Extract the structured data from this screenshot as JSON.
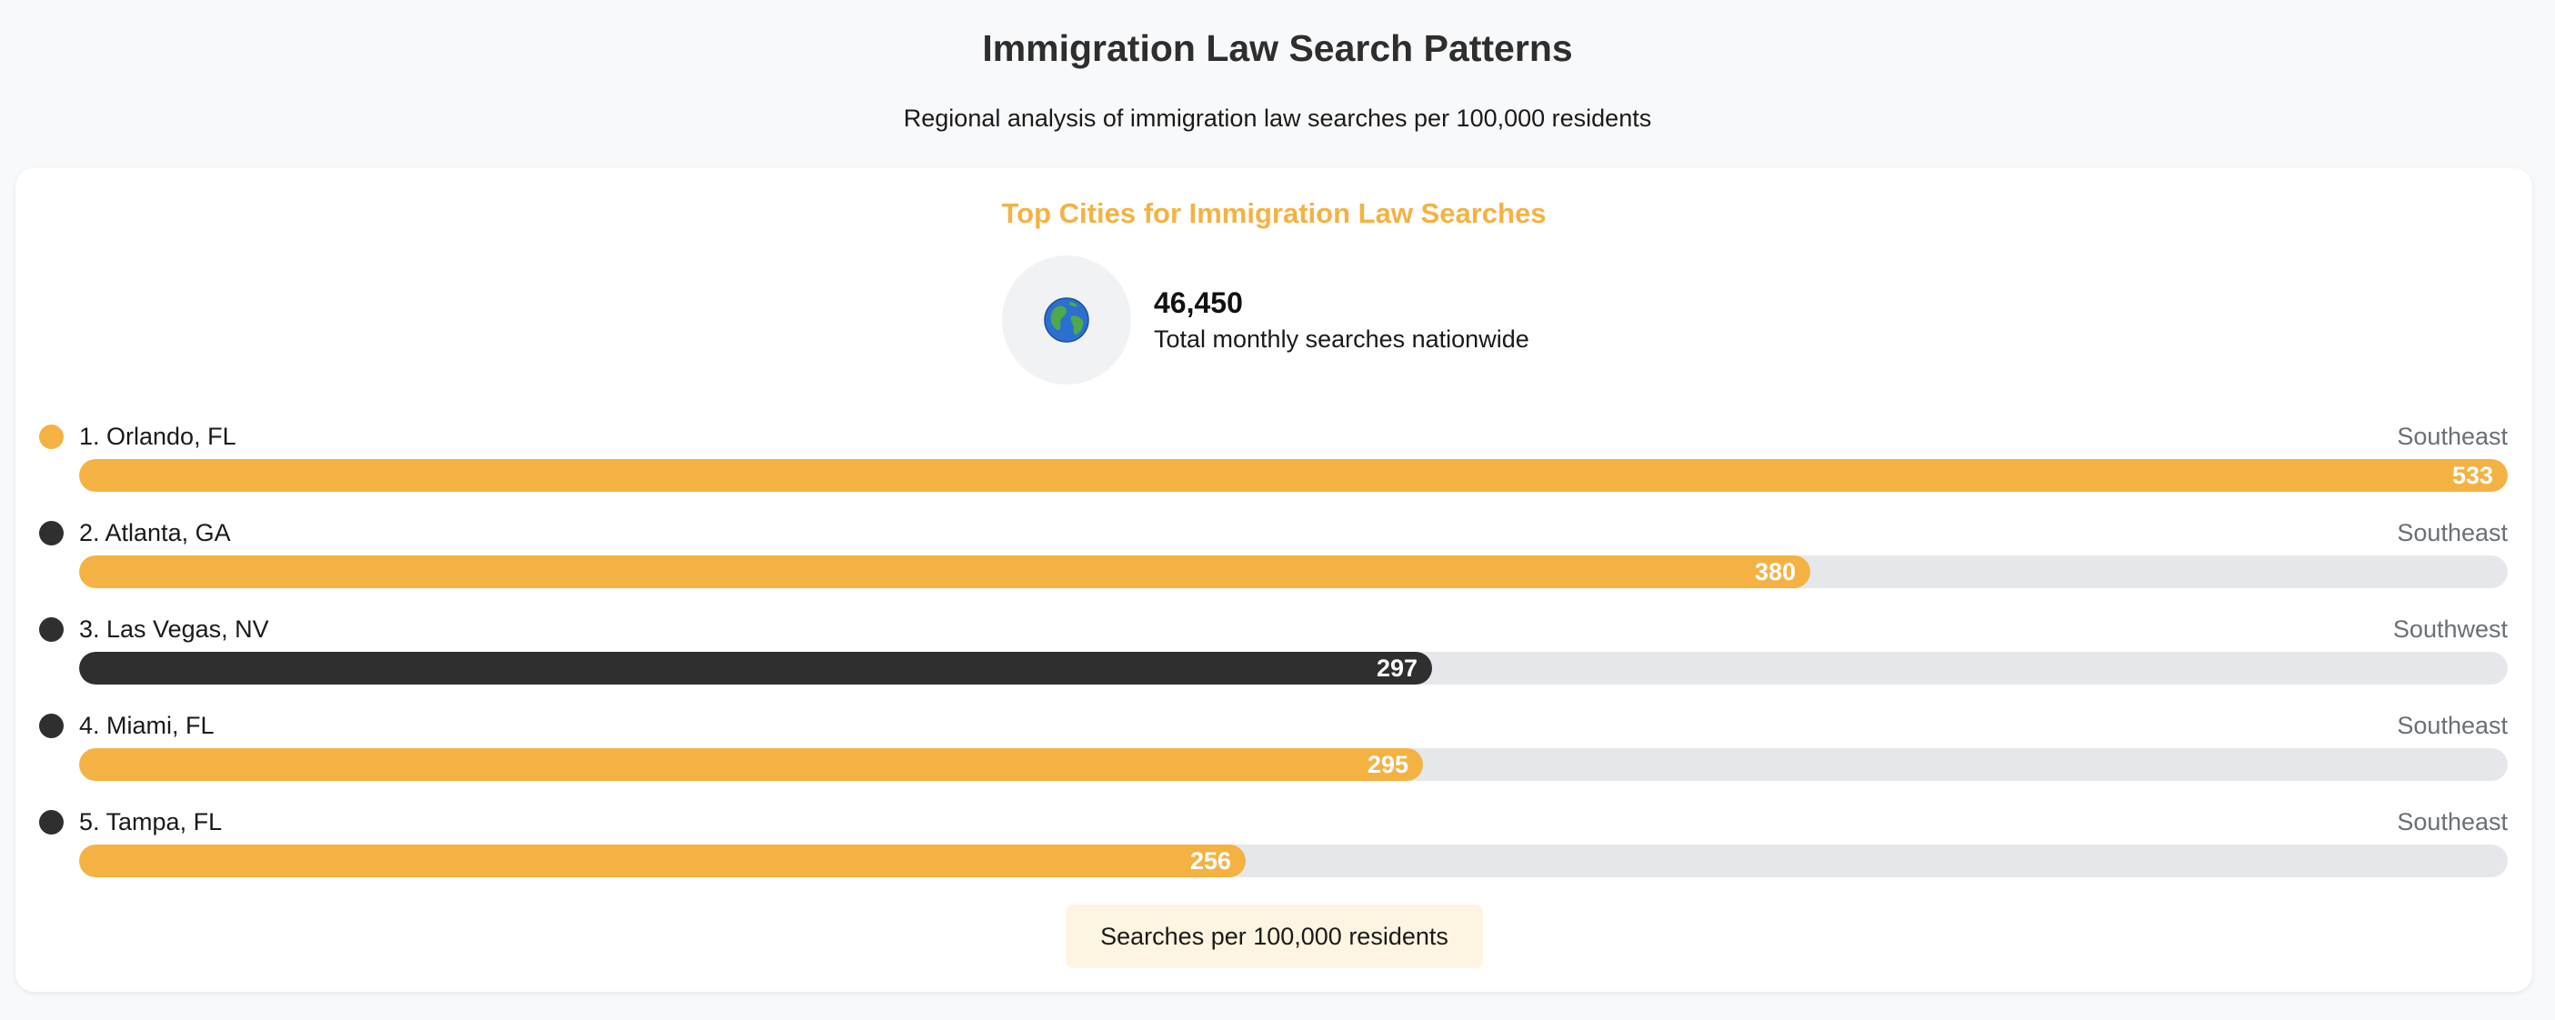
{
  "page": {
    "title": "Immigration Law Search Patterns",
    "subtitle": "Regional analysis of immigration law searches per 100,000 residents"
  },
  "card": {
    "title": "Top Cities for Immigration Law Searches",
    "globe_icon": "globe-icon",
    "total_value": "46,450",
    "total_label": "Total monthly searches nationwide",
    "footer": "Searches per 100,000 residents"
  },
  "colors": {
    "accent": "#f4b242",
    "dark": "#2f2f2f",
    "track": "#e6e7ea"
  },
  "chart_data": {
    "type": "bar",
    "orientation": "horizontal",
    "title": "Top Cities for Immigration Law Searches",
    "unit": "Searches per 100,000 residents",
    "xlim": [
      0,
      533
    ],
    "categories": [
      "1. Orlando, FL",
      "2. Atlanta, GA",
      "3. Las Vegas, NV",
      "4. Miami, FL",
      "5. Tampa, FL"
    ],
    "values": [
      533,
      380,
      297,
      295,
      256
    ],
    "labels": [
      "533",
      "380",
      "297",
      "295",
      "256"
    ],
    "regions": [
      "Southeast",
      "Southeast",
      "Southwest",
      "Southeast",
      "Southeast"
    ],
    "bar_colors": [
      "#f4b242",
      "#f4b242",
      "#2f2f2f",
      "#f4b242",
      "#f4b242"
    ],
    "dot_colors": [
      "#f4b242",
      "#2f2f2f",
      "#2f2f2f",
      "#2f2f2f",
      "#2f2f2f"
    ]
  }
}
